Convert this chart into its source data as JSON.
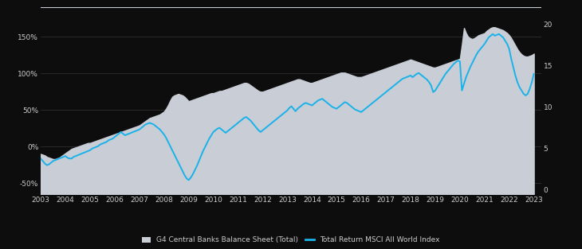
{
  "background_color": "#0d0d0d",
  "plot_bg_color": "#0d0d0d",
  "grid_color": "#404040",
  "left_label": "G4 Central Banks Balance Sheet (Total)",
  "right_label": "Total Return MSCI All World Index",
  "x_years": [
    2003,
    2004,
    2005,
    2006,
    2007,
    2008,
    2009,
    2010,
    2011,
    2012,
    2013,
    2014,
    2015,
    2016,
    2017,
    2018,
    2019,
    2020,
    2021,
    2022,
    2023
  ],
  "left_yticks_vals": [
    -50,
    0,
    50,
    100,
    150
  ],
  "left_yticks_labels": [
    "-50%",
    "0%",
    "50%",
    "100%",
    "150%"
  ],
  "right_yticks_vals": [
    0,
    5,
    10,
    15,
    20
  ],
  "right_yticks_labels": [
    "0",
    "5",
    "10",
    "15",
    "20"
  ],
  "ylim_left": [
    -65,
    190
  ],
  "ylim_right": [
    -0.5,
    22
  ],
  "fill_color": "#c8cdd6",
  "line_color": "#1ab2e8",
  "line_width": 1.4,
  "fill_alpha": 1.0,
  "top_bar_color": "#c8cdd6",
  "cb_data_x": [
    2003.0,
    2003.083,
    2003.167,
    2003.25,
    2003.333,
    2003.417,
    2003.5,
    2003.583,
    2003.667,
    2003.75,
    2003.833,
    2003.917,
    2004.0,
    2004.083,
    2004.167,
    2004.25,
    2004.333,
    2004.417,
    2004.5,
    2004.583,
    2004.667,
    2004.75,
    2004.833,
    2004.917,
    2005.0,
    2005.083,
    2005.167,
    2005.25,
    2005.333,
    2005.417,
    2005.5,
    2005.583,
    2005.667,
    2005.75,
    2005.833,
    2005.917,
    2006.0,
    2006.083,
    2006.167,
    2006.25,
    2006.333,
    2006.417,
    2006.5,
    2006.583,
    2006.667,
    2006.75,
    2006.833,
    2006.917,
    2007.0,
    2007.083,
    2007.167,
    2007.25,
    2007.333,
    2007.417,
    2007.5,
    2007.583,
    2007.667,
    2007.75,
    2007.833,
    2007.917,
    2008.0,
    2008.083,
    2008.167,
    2008.25,
    2008.333,
    2008.417,
    2008.5,
    2008.583,
    2008.667,
    2008.75,
    2008.833,
    2008.917,
    2009.0,
    2009.083,
    2009.167,
    2009.25,
    2009.333,
    2009.417,
    2009.5,
    2009.583,
    2009.667,
    2009.75,
    2009.833,
    2009.917,
    2010.0,
    2010.083,
    2010.167,
    2010.25,
    2010.333,
    2010.417,
    2010.5,
    2010.583,
    2010.667,
    2010.75,
    2010.833,
    2010.917,
    2011.0,
    2011.083,
    2011.167,
    2011.25,
    2011.333,
    2011.417,
    2011.5,
    2011.583,
    2011.667,
    2011.75,
    2011.833,
    2011.917,
    2012.0,
    2012.083,
    2012.167,
    2012.25,
    2012.333,
    2012.417,
    2012.5,
    2012.583,
    2012.667,
    2012.75,
    2012.833,
    2012.917,
    2013.0,
    2013.083,
    2013.167,
    2013.25,
    2013.333,
    2013.417,
    2013.5,
    2013.583,
    2013.667,
    2013.75,
    2013.833,
    2013.917,
    2014.0,
    2014.083,
    2014.167,
    2014.25,
    2014.333,
    2014.417,
    2014.5,
    2014.583,
    2014.667,
    2014.75,
    2014.833,
    2014.917,
    2015.0,
    2015.083,
    2015.167,
    2015.25,
    2015.333,
    2015.417,
    2015.5,
    2015.583,
    2015.667,
    2015.75,
    2015.833,
    2015.917,
    2016.0,
    2016.083,
    2016.167,
    2016.25,
    2016.333,
    2016.417,
    2016.5,
    2016.583,
    2016.667,
    2016.75,
    2016.833,
    2016.917,
    2017.0,
    2017.083,
    2017.167,
    2017.25,
    2017.333,
    2017.417,
    2017.5,
    2017.583,
    2017.667,
    2017.75,
    2017.833,
    2017.917,
    2018.0,
    2018.083,
    2018.167,
    2018.25,
    2018.333,
    2018.417,
    2018.5,
    2018.583,
    2018.667,
    2018.75,
    2018.833,
    2018.917,
    2019.0,
    2019.083,
    2019.167,
    2019.25,
    2019.333,
    2019.417,
    2019.5,
    2019.583,
    2019.667,
    2019.75,
    2019.833,
    2019.917,
    2020.0,
    2020.083,
    2020.167,
    2020.25,
    2020.333,
    2020.417,
    2020.5,
    2020.583,
    2020.667,
    2020.75,
    2020.833,
    2020.917,
    2021.0,
    2021.083,
    2021.167,
    2021.25,
    2021.333,
    2021.417,
    2021.5,
    2021.583,
    2021.667,
    2021.75,
    2021.833,
    2021.917,
    2022.0,
    2022.083,
    2022.167,
    2022.25,
    2022.333,
    2022.417,
    2022.5,
    2022.583,
    2022.667,
    2022.75,
    2022.833,
    2022.917,
    2023.0
  ],
  "cb_data_y": [
    -10,
    -11,
    -12,
    -14,
    -15,
    -16,
    -17,
    -17,
    -16,
    -15,
    -13,
    -11,
    -9,
    -7,
    -5,
    -3,
    -2,
    -1,
    0,
    1,
    2,
    3,
    4,
    5,
    5,
    6,
    7,
    8,
    9,
    10,
    11,
    12,
    13,
    14,
    15,
    16,
    17,
    18,
    19,
    20,
    21,
    22,
    23,
    24,
    25,
    26,
    27,
    28,
    29,
    31,
    33,
    35,
    37,
    39,
    40,
    41,
    42,
    43,
    44,
    46,
    48,
    52,
    57,
    63,
    68,
    70,
    71,
    72,
    71,
    70,
    68,
    65,
    62,
    63,
    64,
    65,
    66,
    67,
    68,
    69,
    70,
    71,
    72,
    73,
    73,
    74,
    75,
    76,
    76,
    77,
    78,
    79,
    80,
    81,
    82,
    83,
    84,
    85,
    86,
    87,
    87,
    86,
    84,
    82,
    80,
    78,
    76,
    75,
    75,
    76,
    77,
    78,
    79,
    80,
    81,
    82,
    83,
    84,
    85,
    86,
    87,
    88,
    89,
    90,
    91,
    92,
    92,
    91,
    90,
    89,
    88,
    87,
    87,
    88,
    89,
    90,
    91,
    92,
    93,
    94,
    95,
    96,
    97,
    98,
    99,
    100,
    101,
    101,
    101,
    100,
    99,
    98,
    97,
    96,
    95,
    95,
    95,
    96,
    97,
    98,
    99,
    100,
    101,
    102,
    103,
    104,
    105,
    106,
    107,
    108,
    109,
    110,
    111,
    112,
    113,
    114,
    115,
    116,
    117,
    118,
    119,
    118,
    117,
    116,
    115,
    114,
    113,
    112,
    111,
    110,
    109,
    108,
    108,
    109,
    110,
    111,
    112,
    113,
    114,
    115,
    116,
    117,
    118,
    119,
    120,
    140,
    162,
    155,
    150,
    148,
    147,
    148,
    150,
    152,
    153,
    154,
    155,
    158,
    160,
    162,
    163,
    163,
    162,
    161,
    160,
    159,
    157,
    155,
    152,
    148,
    143,
    138,
    133,
    129,
    126,
    124,
    123,
    123,
    124,
    125,
    127
  ],
  "msci_data_x": [
    2003.0,
    2003.083,
    2003.167,
    2003.25,
    2003.333,
    2003.417,
    2003.5,
    2003.583,
    2003.667,
    2003.75,
    2003.833,
    2003.917,
    2004.0,
    2004.083,
    2004.167,
    2004.25,
    2004.333,
    2004.417,
    2004.5,
    2004.583,
    2004.667,
    2004.75,
    2004.833,
    2004.917,
    2005.0,
    2005.083,
    2005.167,
    2005.25,
    2005.333,
    2005.417,
    2005.5,
    2005.583,
    2005.667,
    2005.75,
    2005.833,
    2005.917,
    2006.0,
    2006.083,
    2006.167,
    2006.25,
    2006.333,
    2006.417,
    2006.5,
    2006.583,
    2006.667,
    2006.75,
    2006.833,
    2006.917,
    2007.0,
    2007.083,
    2007.167,
    2007.25,
    2007.333,
    2007.417,
    2007.5,
    2007.583,
    2007.667,
    2007.75,
    2007.833,
    2007.917,
    2008.0,
    2008.083,
    2008.167,
    2008.25,
    2008.333,
    2008.417,
    2008.5,
    2008.583,
    2008.667,
    2008.75,
    2008.833,
    2008.917,
    2009.0,
    2009.083,
    2009.167,
    2009.25,
    2009.333,
    2009.417,
    2009.5,
    2009.583,
    2009.667,
    2009.75,
    2009.833,
    2009.917,
    2010.0,
    2010.083,
    2010.167,
    2010.25,
    2010.333,
    2010.417,
    2010.5,
    2010.583,
    2010.667,
    2010.75,
    2010.833,
    2010.917,
    2011.0,
    2011.083,
    2011.167,
    2011.25,
    2011.333,
    2011.417,
    2011.5,
    2011.583,
    2011.667,
    2011.75,
    2011.833,
    2011.917,
    2012.0,
    2012.083,
    2012.167,
    2012.25,
    2012.333,
    2012.417,
    2012.5,
    2012.583,
    2012.667,
    2012.75,
    2012.833,
    2012.917,
    2013.0,
    2013.083,
    2013.167,
    2013.25,
    2013.333,
    2013.417,
    2013.5,
    2013.583,
    2013.667,
    2013.75,
    2013.833,
    2013.917,
    2014.0,
    2014.083,
    2014.167,
    2014.25,
    2014.333,
    2014.417,
    2014.5,
    2014.583,
    2014.667,
    2014.75,
    2014.833,
    2014.917,
    2015.0,
    2015.083,
    2015.167,
    2015.25,
    2015.333,
    2015.417,
    2015.5,
    2015.583,
    2015.667,
    2015.75,
    2015.833,
    2015.917,
    2016.0,
    2016.083,
    2016.167,
    2016.25,
    2016.333,
    2016.417,
    2016.5,
    2016.583,
    2016.667,
    2016.75,
    2016.833,
    2016.917,
    2017.0,
    2017.083,
    2017.167,
    2017.25,
    2017.333,
    2017.417,
    2017.5,
    2017.583,
    2017.667,
    2017.75,
    2017.833,
    2017.917,
    2018.0,
    2018.083,
    2018.167,
    2018.25,
    2018.333,
    2018.417,
    2018.5,
    2018.583,
    2018.667,
    2018.75,
    2018.833,
    2018.917,
    2019.0,
    2019.083,
    2019.167,
    2019.25,
    2019.333,
    2019.417,
    2019.5,
    2019.583,
    2019.667,
    2019.75,
    2019.833,
    2019.917,
    2020.0,
    2020.083,
    2020.167,
    2020.25,
    2020.333,
    2020.417,
    2020.5,
    2020.583,
    2020.667,
    2020.75,
    2020.833,
    2020.917,
    2021.0,
    2021.083,
    2021.167,
    2021.25,
    2021.333,
    2021.417,
    2021.5,
    2021.583,
    2021.667,
    2021.75,
    2021.833,
    2021.917,
    2022.0,
    2022.083,
    2022.167,
    2022.25,
    2022.333,
    2022.417,
    2022.5,
    2022.583,
    2022.667,
    2022.75,
    2022.833,
    2022.917,
    2023.0
  ],
  "msci_data_y": [
    3.8,
    3.5,
    3.2,
    3.0,
    3.1,
    3.3,
    3.5,
    3.6,
    3.7,
    3.8,
    3.9,
    4.0,
    4.1,
    3.9,
    3.8,
    3.8,
    4.0,
    4.1,
    4.2,
    4.3,
    4.4,
    4.5,
    4.6,
    4.7,
    4.8,
    5.0,
    5.1,
    5.2,
    5.3,
    5.5,
    5.6,
    5.7,
    5.8,
    6.0,
    6.1,
    6.2,
    6.4,
    6.6,
    6.8,
    7.0,
    6.8,
    6.6,
    6.7,
    6.8,
    6.9,
    7.0,
    7.1,
    7.2,
    7.3,
    7.5,
    7.7,
    7.9,
    8.0,
    8.1,
    8.0,
    7.9,
    7.7,
    7.5,
    7.3,
    7.0,
    6.7,
    6.3,
    5.8,
    5.3,
    4.8,
    4.3,
    3.8,
    3.3,
    2.8,
    2.3,
    1.8,
    1.4,
    1.2,
    1.5,
    1.9,
    2.4,
    2.9,
    3.5,
    4.1,
    4.7,
    5.2,
    5.7,
    6.2,
    6.6,
    7.0,
    7.2,
    7.4,
    7.5,
    7.3,
    7.1,
    6.9,
    7.1,
    7.3,
    7.5,
    7.7,
    7.9,
    8.1,
    8.3,
    8.5,
    8.7,
    8.8,
    8.6,
    8.4,
    8.1,
    7.8,
    7.5,
    7.2,
    7.0,
    7.2,
    7.4,
    7.6,
    7.8,
    8.0,
    8.2,
    8.4,
    8.6,
    8.8,
    9.0,
    9.2,
    9.4,
    9.6,
    9.9,
    10.1,
    9.8,
    9.5,
    9.8,
    10.0,
    10.2,
    10.4,
    10.5,
    10.4,
    10.3,
    10.2,
    10.4,
    10.6,
    10.8,
    10.9,
    11.0,
    10.8,
    10.6,
    10.4,
    10.2,
    10.0,
    9.9,
    9.8,
    10.0,
    10.2,
    10.4,
    10.6,
    10.5,
    10.3,
    10.1,
    9.9,
    9.7,
    9.6,
    9.5,
    9.4,
    9.6,
    9.8,
    10.0,
    10.2,
    10.4,
    10.6,
    10.8,
    11.0,
    11.2,
    11.4,
    11.6,
    11.8,
    12.0,
    12.2,
    12.4,
    12.6,
    12.8,
    13.0,
    13.2,
    13.4,
    13.5,
    13.6,
    13.7,
    13.8,
    13.6,
    13.8,
    14.0,
    14.1,
    13.9,
    13.7,
    13.5,
    13.3,
    13.0,
    12.6,
    11.8,
    12.0,
    12.4,
    12.8,
    13.2,
    13.6,
    14.0,
    14.3,
    14.6,
    14.9,
    15.2,
    15.4,
    15.6,
    15.5,
    12.0,
    12.8,
    13.6,
    14.2,
    14.8,
    15.3,
    15.8,
    16.3,
    16.7,
    17.0,
    17.3,
    17.6,
    18.0,
    18.4,
    18.6,
    18.8,
    18.6,
    18.7,
    18.8,
    18.6,
    18.4,
    18.0,
    17.6,
    17.0,
    15.8,
    14.8,
    13.8,
    13.0,
    12.4,
    12.0,
    11.6,
    11.4,
    11.6,
    12.2,
    13.0,
    14.0
  ]
}
